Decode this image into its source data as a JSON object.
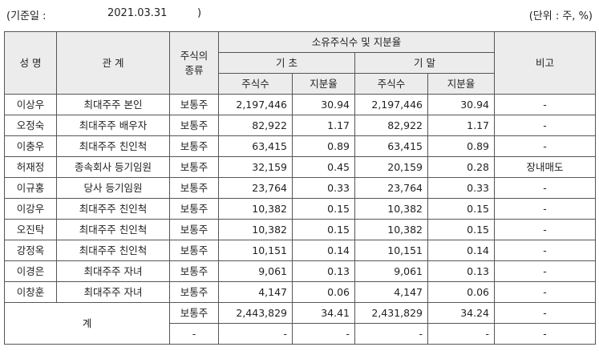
{
  "header": {
    "date_label": "(기준일 :",
    "date_value": "2021.03.31",
    "date_close": ")",
    "unit": "(단위 : 주, %)"
  },
  "columns": {
    "name": "성 명",
    "relation": "관 계",
    "stock_type_line1": "주식의",
    "stock_type_line2": "종류",
    "owned_group": "소유주식수 및 지분율",
    "begin": "기 초",
    "end": "기 말",
    "shares": "주식수",
    "ratio": "지분율",
    "note": "비고"
  },
  "rows": [
    {
      "name": "이상우",
      "relation": "최대주주 본인",
      "type": "보통주",
      "begin_shares": "2,197,446",
      "begin_ratio": "30.94",
      "end_shares": "2,197,446",
      "end_ratio": "30.94",
      "note": "-"
    },
    {
      "name": "오정숙",
      "relation": "최대주주 배우자",
      "type": "보통주",
      "begin_shares": "82,922",
      "begin_ratio": "1.17",
      "end_shares": "82,922",
      "end_ratio": "1.17",
      "note": "-"
    },
    {
      "name": "이충우",
      "relation": "최대주주 친인척",
      "type": "보통주",
      "begin_shares": "63,415",
      "begin_ratio": "0.89",
      "end_shares": "63,415",
      "end_ratio": "0.89",
      "note": "-"
    },
    {
      "name": "허재정",
      "relation": "종속회사 등기임원",
      "type": "보통주",
      "begin_shares": "32,159",
      "begin_ratio": "0.45",
      "end_shares": "20,159",
      "end_ratio": "0.28",
      "note": "장내매도"
    },
    {
      "name": "이규홍",
      "relation": "당사 등기임원",
      "type": "보통주",
      "begin_shares": "23,764",
      "begin_ratio": "0.33",
      "end_shares": "23,764",
      "end_ratio": "0.33",
      "note": "-"
    },
    {
      "name": "이강우",
      "relation": "최대주주 친인척",
      "type": "보통주",
      "begin_shares": "10,382",
      "begin_ratio": "0.15",
      "end_shares": "10,382",
      "end_ratio": "0.15",
      "note": "-"
    },
    {
      "name": "오진탁",
      "relation": "최대주주 친인척",
      "type": "보통주",
      "begin_shares": "10,382",
      "begin_ratio": "0.15",
      "end_shares": "10,382",
      "end_ratio": "0.15",
      "note": "-"
    },
    {
      "name": "강정옥",
      "relation": "최대주주 친인척",
      "type": "보통주",
      "begin_shares": "10,151",
      "begin_ratio": "0.14",
      "end_shares": "10,151",
      "end_ratio": "0.14",
      "note": "-"
    },
    {
      "name": "이경은",
      "relation": "최대주주 자녀",
      "type": "보통주",
      "begin_shares": "9,061",
      "begin_ratio": "0.13",
      "end_shares": "9,061",
      "end_ratio": "0.13",
      "note": "-"
    },
    {
      "name": "이창훈",
      "relation": "최대주주 자녀",
      "type": "보통주",
      "begin_shares": "4,147",
      "begin_ratio": "0.06",
      "end_shares": "4,147",
      "end_ratio": "0.06",
      "note": "-"
    }
  ],
  "total": {
    "label": "계",
    "rows": [
      {
        "type": "보통주",
        "begin_shares": "2,443,829",
        "begin_ratio": "34.41",
        "end_shares": "2,431,829",
        "end_ratio": "34.24",
        "note": "-"
      },
      {
        "type": "-",
        "begin_shares": "-",
        "begin_ratio": "-",
        "end_shares": "-",
        "end_ratio": "-",
        "note": "-"
      }
    ]
  }
}
